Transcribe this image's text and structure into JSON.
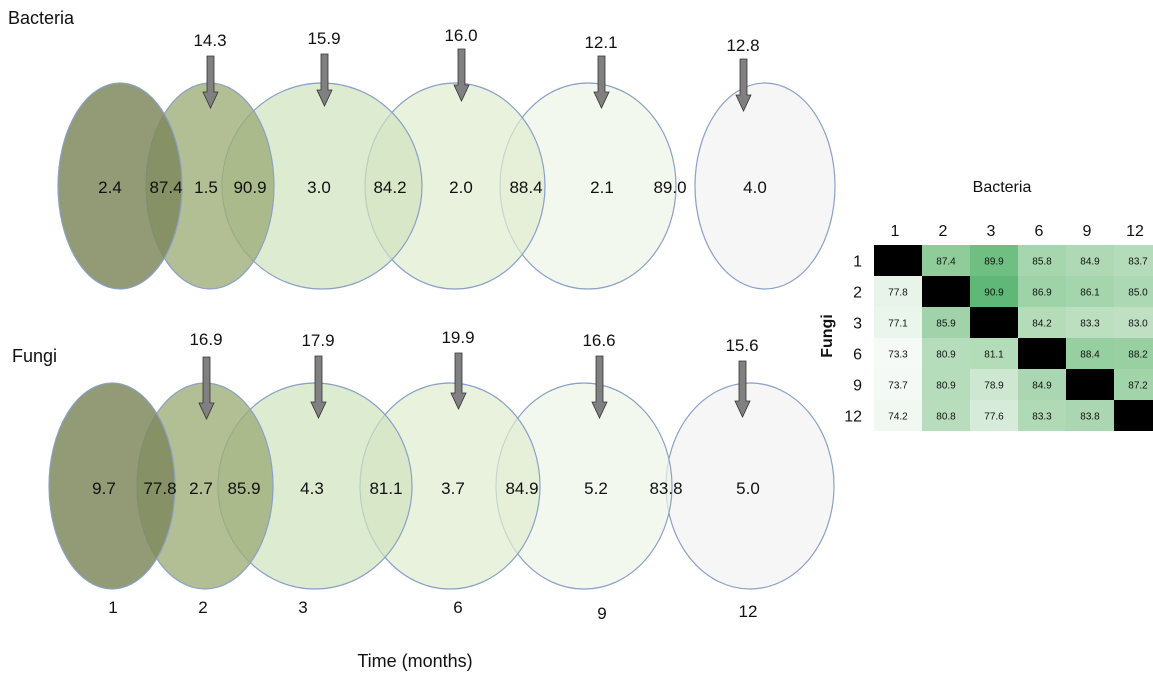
{
  "titles": {
    "bacteria": "Bacteria",
    "fungi": "Fungi",
    "time_axis": "Time (months)",
    "matrix_title": "Bacteria",
    "matrix_side": "Fungi"
  },
  "colors": {
    "c1": "#7f8a5e",
    "c2": "#9fae78",
    "c3": "#cfe2bd",
    "c4": "#dfeccf",
    "c5": "#eef5e8",
    "c6": "#f4f4f4",
    "circle_stroke": "#8aa0c8",
    "arrow": "#808080",
    "matrix_dark": "#000000"
  },
  "time_labels": [
    "1",
    "2",
    "3",
    "6",
    "9",
    "12"
  ],
  "bacteria": {
    "arrows": [
      "14.3",
      "15.9",
      "16.0",
      "12.1",
      "12.8"
    ],
    "inside": [
      "2.4",
      "87.4",
      "1.5",
      "90.9",
      "3.0",
      "84.2",
      "2.0",
      "88.4",
      "2.1",
      "89.0",
      "4.0"
    ]
  },
  "fungi": {
    "arrows": [
      "16.9",
      "17.9",
      "19.9",
      "16.6",
      "15.6"
    ],
    "inside": [
      "9.7",
      "77.8",
      "2.7",
      "85.9",
      "4.3",
      "81.1",
      "3.7",
      "84.9",
      "5.2",
      "83.8",
      "5.0"
    ]
  },
  "matrix": {
    "headers": [
      "1",
      "2",
      "3",
      "6",
      "9",
      "12"
    ],
    "rows": [
      [
        "",
        "87.4",
        "89.9",
        "85.8",
        "84.9",
        "83.7"
      ],
      [
        "77.8",
        "",
        "90.9",
        "86.9",
        "86.1",
        "85.0"
      ],
      [
        "77.1",
        "85.9",
        "",
        "84.2",
        "83.3",
        "83.0"
      ],
      [
        "73.3",
        "80.9",
        "81.1",
        "",
        "88.4",
        "88.2"
      ],
      [
        "73.7",
        "80.9",
        "78.9",
        "84.9",
        "",
        "87.2"
      ],
      [
        "74.2",
        "80.8",
        "77.6",
        "83.3",
        "83.8",
        ""
      ]
    ],
    "colors": [
      [
        "#000000",
        "#8fcc9a",
        "#6fbf83",
        "#a6d6ae",
        "#aed9b4",
        "#b5dcba"
      ],
      [
        "#e8f4ea",
        "#000000",
        "#5fb877",
        "#9ed3a7",
        "#a4d5ac",
        "#acd8b3"
      ],
      [
        "#eaf5ec",
        "#a0d3a9",
        "#000000",
        "#b4dcb9",
        "#bcdfc0",
        "#bfe0c3"
      ],
      [
        "#f5faf6",
        "#b6ddbb",
        "#b3dcb9",
        "#000000",
        "#96cfa0",
        "#98d0a2"
      ],
      [
        "#f3f9f4",
        "#b6ddbb",
        "#cde7d1",
        "#aad7b1",
        "#000000",
        "#a2d4aa"
      ],
      [
        "#f1f8f2",
        "#b8ddbd",
        "#d6ebd9",
        "#b0d9b6",
        "#aad7b1",
        "#000000"
      ]
    ]
  }
}
